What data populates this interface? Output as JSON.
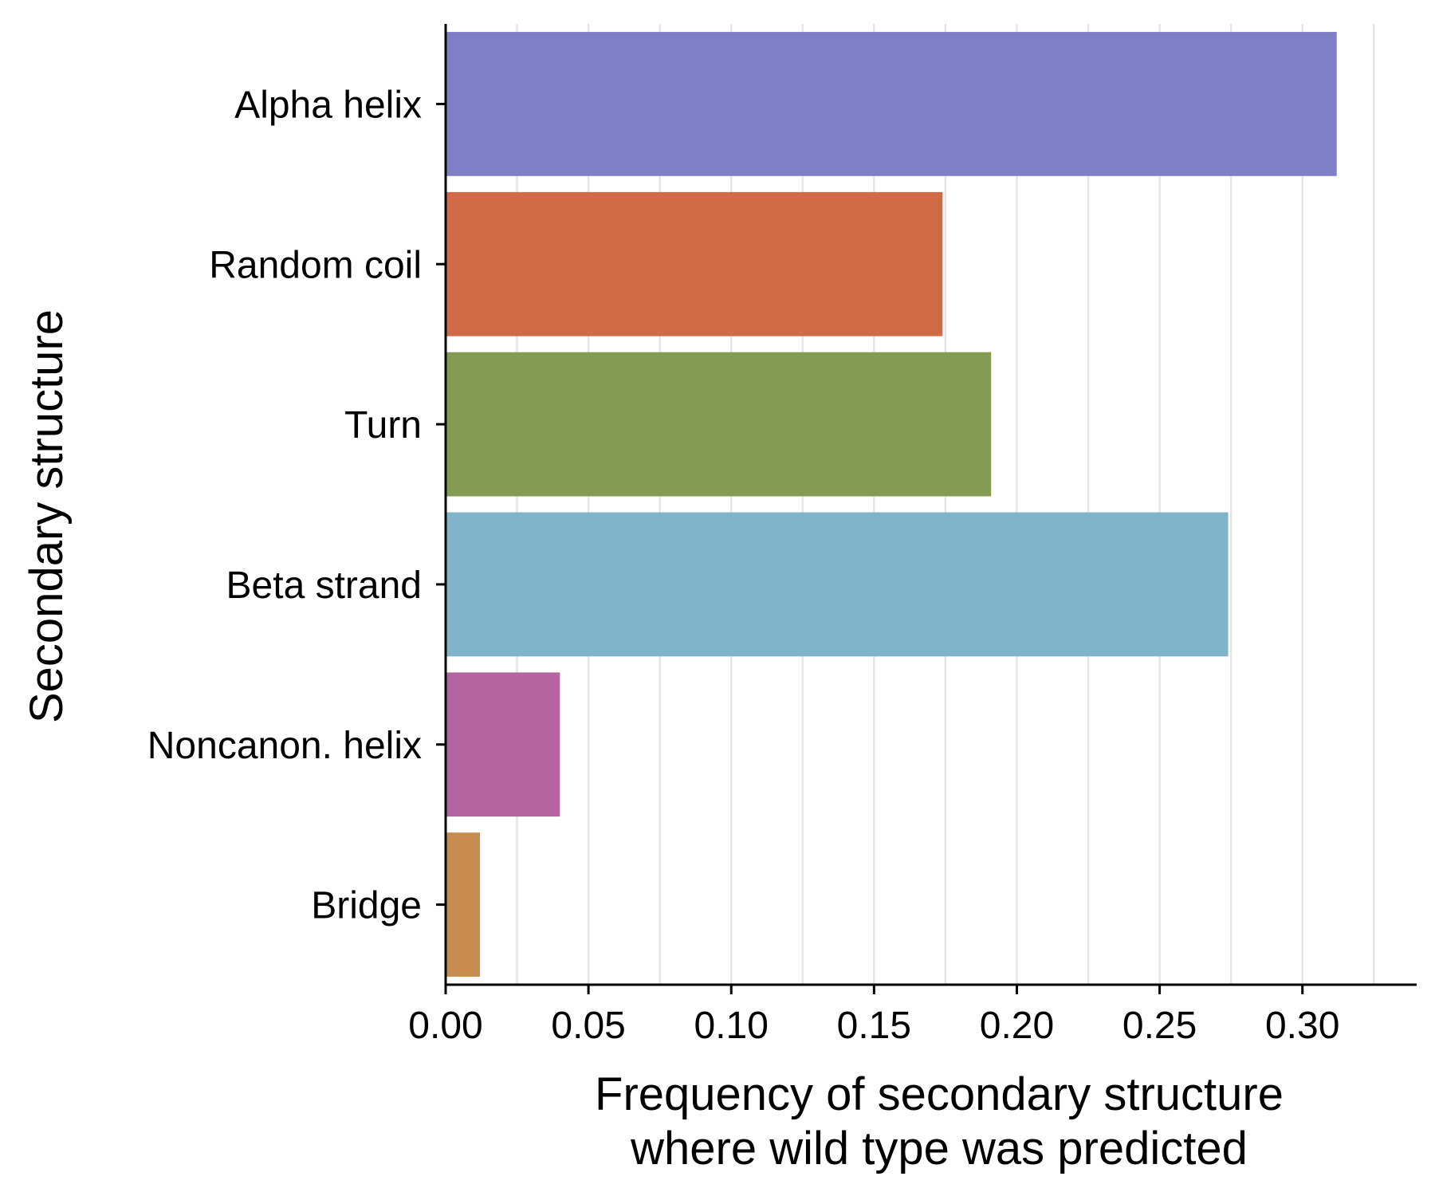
{
  "chart_data": {
    "type": "bar",
    "orientation": "horizontal",
    "categories": [
      "Alpha helix",
      "Random coil",
      "Turn",
      "Beta strand",
      "Noncanon. helix",
      "Bridge"
    ],
    "values": [
      0.312,
      0.174,
      0.191,
      0.274,
      0.04,
      0.012
    ],
    "colors": [
      "#7f7fc8",
      "#d06a47",
      "#849b52",
      "#80b5c9",
      "#b464a0",
      "#c88c50"
    ],
    "xlabel_lines": [
      "Frequency of secondary structure",
      "where wild type was predicted"
    ],
    "ylabel": "Secondary structure",
    "xlim": [
      0,
      0.34
    ],
    "x_ticks": [
      0,
      0.05,
      0.1,
      0.15,
      0.2,
      0.25,
      0.3
    ],
    "x_tick_labels": [
      "0.00",
      "0.05",
      "0.10",
      "0.15",
      "0.20",
      "0.25",
      "0.30"
    ],
    "x_minor_grid": [
      0.025,
      0.075,
      0.125,
      0.175,
      0.225,
      0.275,
      0.325
    ],
    "grid": "vertical",
    "legend": "none"
  }
}
